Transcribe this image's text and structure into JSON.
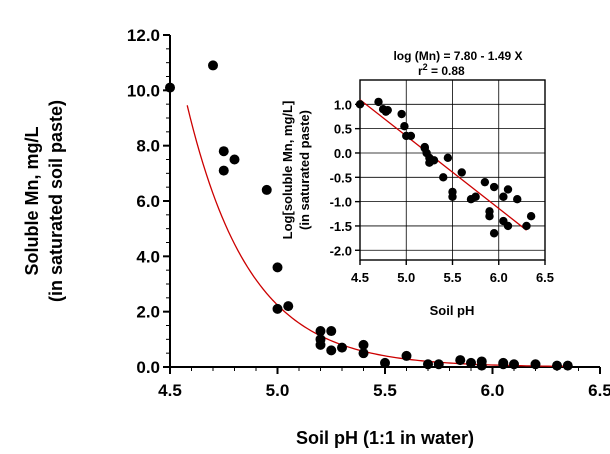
{
  "chart_data": [
    {
      "type": "scatter",
      "xlabel": "Soil pH (1:1 in water)",
      "ylabel_line1": "Soluble Mn, mg/L",
      "ylabel_line2": "(in saturated soil paste)",
      "xlim": [
        4.5,
        6.5
      ],
      "ylim": [
        0.0,
        12.0
      ],
      "x_ticks": [
        "4.5",
        "5.0",
        "5.5",
        "6.0",
        "6.5"
      ],
      "y_ticks": [
        "0.0",
        "2.0",
        "4.0",
        "6.0",
        "8.0",
        "10.0",
        "12.0"
      ],
      "grid": false,
      "series": [
        {
          "kind": "points",
          "x": [
            4.5,
            4.7,
            4.75,
            4.75,
            4.8,
            4.95,
            5.0,
            5.0,
            5.05,
            5.2,
            5.2,
            5.2,
            5.25,
            5.25,
            5.3,
            5.4,
            5.4,
            5.5,
            5.6,
            5.7,
            5.75,
            5.85,
            5.9,
            5.95,
            5.95,
            6.05,
            6.05,
            6.1,
            6.2,
            6.3,
            6.35
          ],
          "y": [
            10.1,
            10.9,
            7.8,
            7.1,
            7.5,
            6.4,
            3.6,
            2.1,
            2.2,
            1.3,
            1.0,
            0.8,
            1.3,
            0.6,
            0.7,
            0.8,
            0.5,
            0.15,
            0.4,
            0.1,
            0.1,
            0.25,
            0.15,
            0.2,
            0.05,
            0.15,
            0.1,
            0.1,
            0.1,
            0.05,
            0.05
          ]
        },
        {
          "kind": "fit-curve",
          "color": "#cc0000",
          "equation": "log10(Mn) = 7.80 - 1.49 X",
          "x_range": [
            4.58,
            6.35
          ]
        }
      ]
    },
    {
      "type": "scatter",
      "inset": true,
      "xlabel": "Soil pH",
      "ylabel_line1": "Log[soluble Mn, mg/L]",
      "ylabel_line2": "(in saturated paste)",
      "equation_line1": "log (Mn) = 7.80 - 1.49 X",
      "equation_line2_base": "r",
      "equation_line2_sup": "2",
      "equation_line2_rest": " = 0.88",
      "xlim": [
        4.5,
        6.5
      ],
      "ylim": [
        -2.2,
        1.5
      ],
      "x_ticks": [
        "4.5",
        "5.0",
        "5.5",
        "6.0",
        "6.5"
      ],
      "y_ticks": [
        "1.0",
        "0.5",
        "0.0",
        "-0.5",
        "-1.0",
        "-1.5",
        "-2.0"
      ],
      "grid": true,
      "series": [
        {
          "kind": "points",
          "x": [
            4.5,
            4.7,
            4.75,
            4.78,
            4.8,
            4.95,
            4.98,
            5.0,
            5.05,
            5.2,
            5.2,
            5.22,
            5.25,
            5.25,
            5.3,
            5.4,
            5.45,
            5.5,
            5.5,
            5.6,
            5.7,
            5.75,
            5.85,
            5.9,
            5.9,
            5.95,
            5.95,
            6.05,
            6.05,
            6.1,
            6.1,
            6.2,
            6.3,
            6.35
          ],
          "y": [
            1.0,
            1.05,
            0.9,
            0.85,
            0.88,
            0.8,
            0.55,
            0.35,
            0.35,
            0.12,
            0.1,
            0.0,
            -0.2,
            -0.1,
            -0.15,
            -0.5,
            -0.1,
            -0.8,
            -0.9,
            -0.4,
            -0.95,
            -0.9,
            -0.6,
            -1.2,
            -1.3,
            -1.65,
            -0.7,
            -0.9,
            -1.4,
            -1.5,
            -0.75,
            -0.95,
            -1.5,
            -1.3
          ]
        },
        {
          "kind": "fit-line",
          "color": "#cc0000",
          "x_range": [
            4.5,
            6.3
          ]
        }
      ]
    }
  ]
}
